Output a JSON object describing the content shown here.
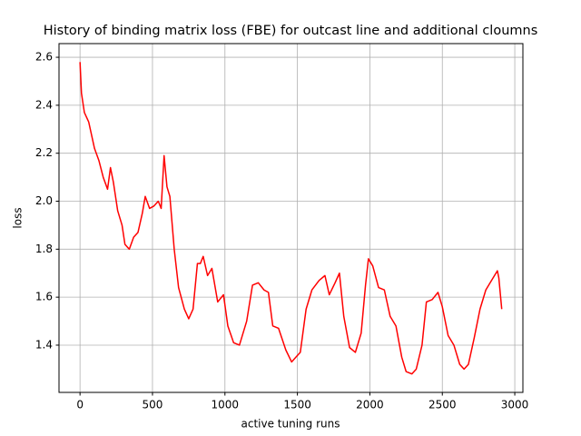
{
  "chart_data": {
    "type": "line",
    "title": "History of binding matrix loss (FBE) for outcast line and additional cloumns",
    "xlabel": "active tuning runs",
    "ylabel": "loss",
    "x": [
      0,
      10,
      30,
      60,
      100,
      130,
      160,
      190,
      210,
      230,
      260,
      290,
      310,
      340,
      370,
      400,
      430,
      450,
      480,
      510,
      540,
      560,
      580,
      600,
      620,
      650,
      680,
      720,
      750,
      780,
      810,
      830,
      850,
      880,
      910,
      950,
      990,
      1020,
      1060,
      1100,
      1150,
      1190,
      1230,
      1270,
      1300,
      1330,
      1370,
      1420,
      1460,
      1490,
      1520,
      1560,
      1600,
      1650,
      1690,
      1720,
      1760,
      1790,
      1820,
      1860,
      1900,
      1940,
      1970,
      1990,
      2020,
      2060,
      2100,
      2140,
      2180,
      2220,
      2250,
      2290,
      2320,
      2360,
      2390,
      2430,
      2470,
      2500,
      2540,
      2580,
      2620,
      2650,
      2680,
      2720,
      2760,
      2800,
      2840,
      2880,
      2890,
      2910
    ],
    "series": [
      {
        "name": "loss",
        "color": "#ff0000",
        "values": [
          2.58,
          2.45,
          2.37,
          2.33,
          2.22,
          2.17,
          2.1,
          2.05,
          2.14,
          2.08,
          1.96,
          1.9,
          1.82,
          1.8,
          1.85,
          1.87,
          1.95,
          2.02,
          1.97,
          1.98,
          2.0,
          1.97,
          2.19,
          2.06,
          2.02,
          1.8,
          1.64,
          1.55,
          1.51,
          1.55,
          1.74,
          1.74,
          1.77,
          1.69,
          1.72,
          1.58,
          1.61,
          1.48,
          1.41,
          1.4,
          1.5,
          1.65,
          1.66,
          1.63,
          1.62,
          1.48,
          1.47,
          1.38,
          1.33,
          1.35,
          1.37,
          1.55,
          1.63,
          1.67,
          1.69,
          1.61,
          1.66,
          1.7,
          1.52,
          1.39,
          1.37,
          1.45,
          1.65,
          1.76,
          1.73,
          1.64,
          1.63,
          1.52,
          1.48,
          1.35,
          1.29,
          1.28,
          1.3,
          1.4,
          1.58,
          1.59,
          1.62,
          1.56,
          1.44,
          1.4,
          1.32,
          1.3,
          1.32,
          1.43,
          1.55,
          1.63,
          1.67,
          1.71,
          1.68,
          1.55
        ]
      }
    ],
    "xlim": [
      -145,
      3056
    ],
    "ylim": [
      1.203,
      2.657
    ],
    "xticks": [
      0,
      500,
      1000,
      1500,
      2000,
      2500,
      3000
    ],
    "yticks": [
      1.4,
      1.6,
      1.8,
      {
        "value": 2,
        "label": "2.0"
      },
      2.2,
      2.4,
      2.6
    ],
    "grid": true
  }
}
